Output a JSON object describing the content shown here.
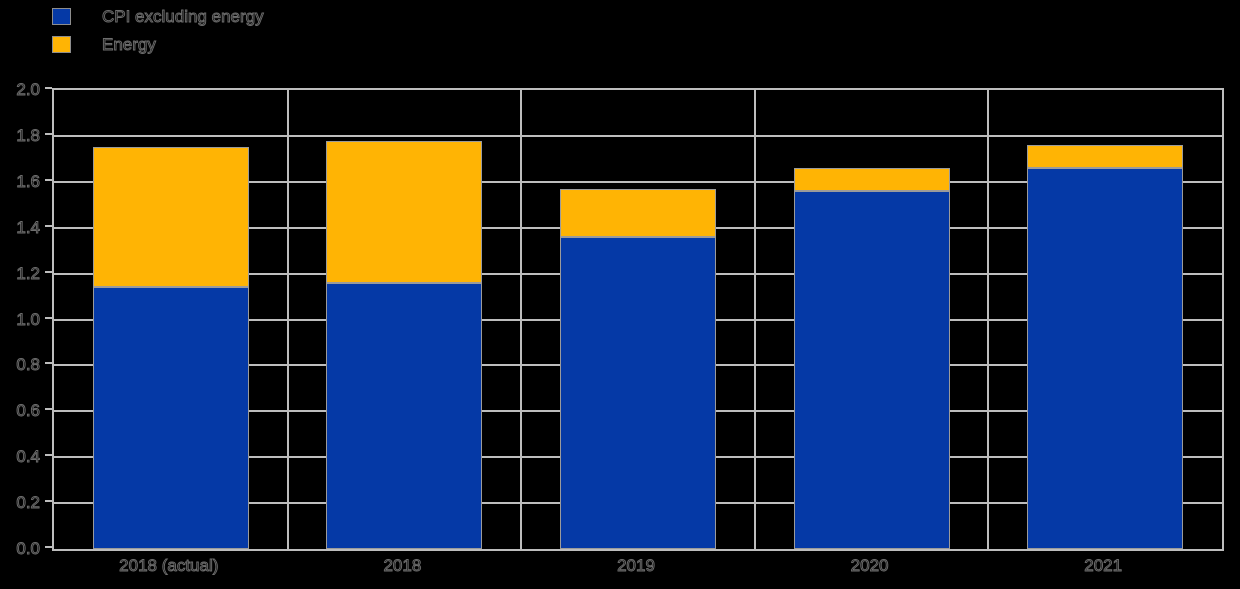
{
  "legend": {
    "items": [
      {
        "label": "CPI excluding energy",
        "color": "#0539A6"
      },
      {
        "label": "Energy",
        "color": "#FFB404"
      }
    ],
    "position": "top-left"
  },
  "chart_data": {
    "type": "bar",
    "stacked": true,
    "title": "",
    "xlabel": "",
    "ylabel": "",
    "categories": [
      "2018 (actual)",
      "2018",
      "2019",
      "2020",
      "2021"
    ],
    "series": [
      {
        "name": "CPI excluding energy",
        "color": "#0539A6",
        "values": [
          1.14,
          1.16,
          1.36,
          1.56,
          1.66
        ]
      },
      {
        "name": "Energy",
        "color": "#FFB404",
        "values": [
          0.61,
          0.62,
          0.21,
          0.1,
          0.1
        ]
      }
    ],
    "totals": [
      1.75,
      1.78,
      1.57,
      1.66,
      1.76
    ],
    "ylim": [
      0.0,
      2.0
    ],
    "ytick_step": 0.2,
    "ytick_labels": [
      "0.0",
      "0.2",
      "0.4",
      "0.6",
      "0.8",
      "1.0",
      "1.2",
      "1.4",
      "1.6",
      "1.8",
      "2.0"
    ],
    "grid": true,
    "grid_color": "#bdbdbd",
    "background_color": "#000000",
    "legend_position": "top-left"
  }
}
